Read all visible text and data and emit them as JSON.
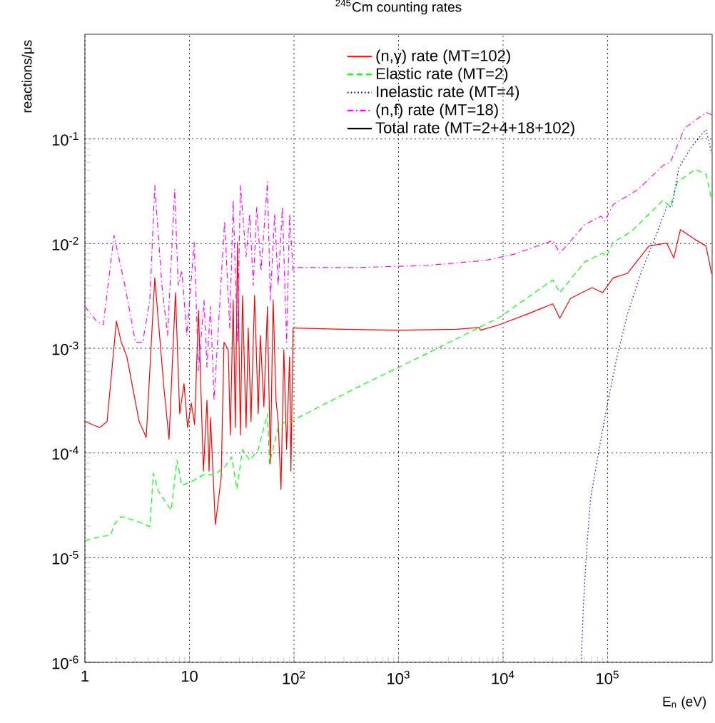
{
  "chart_data": {
    "type": "line",
    "title": "$^{245}$Cm counting rates",
    "xlabel": "E$_{n}$ (eV)",
    "ylabel": "reactions/μs",
    "log": "xy",
    "grid": true,
    "legend": "top right",
    "marker": "none",
    "xlim": [
      1,
      1000000
    ],
    "ylim": [
      1e-06,
      1
    ],
    "xticks": [
      1,
      10,
      {
        "value": 100,
        "label": "10$^{2}$"
      },
      {
        "value": 1000,
        "label": "10$^{3}$"
      },
      {
        "value": 10000,
        "label": "10$^{4}$"
      },
      {
        "value": 100000,
        "label": "10$^{5}$"
      }
    ],
    "yticks": [
      {
        "value": 1e-06,
        "label": "10$^{-6}$"
      },
      {
        "value": 1e-05,
        "label": "10$^{-5}$"
      },
      {
        "value": 0.0001,
        "label": "10$^{-4}$"
      },
      {
        "value": 0.001,
        "label": "10$^{-3}$"
      },
      {
        "value": 0.01,
        "label": "10$^{-2}$"
      },
      {
        "value": 0.1,
        "label": "10$^{-1}$"
      }
    ],
    "series": [
      {
        "name": "(n,γ) rate (MT=102)",
        "color": "#ff0000",
        "line_style": "solid",
        "x": [
          1,
          1.29,
          1.39,
          1.63,
          2.0,
          2.23,
          2.52,
          3.3,
          3.86,
          4.66,
          5.71,
          6.38,
          7.35,
          8.07,
          8.87,
          9.6,
          10.4,
          11.2,
          12.2,
          13.6,
          14.7,
          15.4,
          15.9,
          17.7,
          20.1,
          21.4,
          23.5,
          24.6,
          26.2,
          27.5,
          28.8,
          30.7,
          32.2,
          34.8,
          36.5,
          38.8,
          42,
          45.5,
          47.6,
          51.5,
          55.7,
          59.4,
          63.2,
          67.3,
          70.6,
          75.1,
          80,
          85,
          90.7,
          93.5,
          98,
          100,
          290,
          1020,
          3580,
          5900,
          6100,
          9200,
          17200,
          29900,
          34900,
          44200,
          70800,
          89500,
          113000,
          155000,
          249000,
          368000,
          430000,
          497000,
          690000,
          874000,
          990000
        ],
        "values": [
          0.0002,
          0.00018,
          0.000175,
          0.0002,
          0.00182,
          0.00114,
          0.00083,
          0.0002,
          0.000141,
          0.0047,
          0.00041,
          0.000135,
          0.0034,
          0.000237,
          0.00046,
          0.000175,
          0.0003,
          0.000187,
          0.0023,
          6.7e-05,
          0.00032,
          6.7e-05,
          0.000219,
          2.07e-05,
          5.75e-05,
          0.00114,
          0.00097,
          0.000148,
          0.0029,
          0.000175,
          0.0103,
          0.000148,
          0.0032,
          0.000175,
          0.00156,
          0.0002,
          0.0032,
          0.000237,
          0.00133,
          0.000277,
          0.0025,
          7.9e-05,
          0.0029,
          0.00032,
          0.0002,
          4.5e-05,
          0.00097,
          0.000108,
          0.00083,
          6.7e-05,
          0.00156,
          0.00156,
          0.00152,
          0.00149,
          0.00152,
          0.00158,
          0.00149,
          0.00168,
          0.00213,
          0.00266,
          0.00194,
          0.003,
          0.0038,
          0.0034,
          0.0047,
          0.0052,
          0.0095,
          0.0101,
          0.0073,
          0.0136,
          0.0109,
          0.0095,
          0.0051
        ]
      },
      {
        "name": "Elastic rate (MT=2)",
        "color": "#00ff00",
        "line_style": "dashed",
        "x": [
          1,
          1.39,
          1.76,
          1.9,
          2.23,
          3.05,
          4.18,
          4.52,
          5.05,
          6.69,
          7.6,
          8.47,
          10.4,
          13.6,
          17.2,
          21.7,
          25.4,
          28.4,
          32.2,
          37.7,
          45.5,
          55.7,
          58.3,
          70.6,
          83,
          96,
          100,
          397,
          1910,
          9200,
          29900,
          34900,
          60500,
          89500,
          96900,
          113000,
          168000,
          340000,
          398000,
          466000,
          690000,
          874000,
          990000
        ],
        "values": [
          1.45e-05,
          1.59e-05,
          1.63e-05,
          2.07e-05,
          2.47e-05,
          2.26e-05,
          1.98e-05,
          6.4e-05,
          4.3e-05,
          2.84e-05,
          8.5e-05,
          4.9e-05,
          5.3e-05,
          6.2e-05,
          6.2e-05,
          7.3e-05,
          9.2e-05,
          4.5e-05,
          0.000108,
          8.5e-05,
          0.000108,
          0.000237,
          7.9e-05,
          0.000175,
          0.0002,
          0.0002,
          0.000208,
          0.00042,
          0.0009,
          0.00197,
          0.0045,
          0.0034,
          0.0067,
          0.0081,
          0.0075,
          0.0103,
          0.013,
          0.026,
          0.0225,
          0.039,
          0.051,
          0.046,
          0.026
        ]
      },
      {
        "name": "Inelastic rate (MT=4)",
        "color": "#0000ff",
        "line_style": "dotted",
        "x": [
          56000,
          58600,
          62400,
          68500,
          82800,
          100000,
          123000,
          155000,
          212000,
          291000,
          368000,
          411000,
          481000,
          638000,
          874000,
          990000
        ],
        "values": [
          1e-06,
          3.4e-06,
          1.02e-05,
          3.6e-05,
          0.000108,
          0.0003,
          0.00083,
          0.00213,
          0.0055,
          0.012,
          0.0225,
          0.0225,
          0.053,
          0.085,
          0.123,
          0.073
        ]
      },
      {
        "name": "(n,f) rate (MT=18)",
        "color": "#ff00ff",
        "line_style": "dashdot",
        "x": [
          1,
          1.29,
          1.5,
          1.9,
          2.41,
          3.05,
          3.57,
          4.18,
          4.66,
          5.45,
          6.18,
          7.23,
          7.8,
          8.47,
          9.45,
          11.1,
          12.2,
          13.8,
          14.7,
          15.9,
          17.2,
          21.7,
          24.3,
          26.2,
          28.8,
          30.7,
          34.8,
          37.7,
          40.8,
          44,
          48.4,
          55.7,
          59.4,
          65.3,
          70.6,
          77.5,
          85,
          90.7,
          98,
          100,
          397,
          1910,
          6710,
          12600,
          29900,
          34900,
          60500,
          86900,
          94000,
          113000,
          196000,
          340000,
          398000,
          546000,
          874000,
          990000
        ],
        "values": [
          0.0025,
          0.00182,
          0.00168,
          0.012,
          0.004,
          0.00114,
          0.00114,
          0.0029,
          0.036,
          0.004,
          0.00133,
          0.033,
          0.004,
          0.0055,
          0.00133,
          0.0103,
          0.00061,
          0.0029,
          0.00066,
          0.0025,
          0.00032,
          0.0164,
          0.00156,
          0.026,
          0.00114,
          0.036,
          0.0075,
          0.0192,
          0.004,
          0.0225,
          0.0055,
          0.039,
          0.0029,
          0.0192,
          0.004,
          0.0225,
          0.00114,
          0.0192,
          0.0055,
          0.0059,
          0.0059,
          0.0062,
          0.0069,
          0.0079,
          0.0107,
          0.0081,
          0.0152,
          0.0183,
          0.0164,
          0.0236,
          0.033,
          0.056,
          0.0596,
          0.127,
          0.179,
          0.17
        ]
      },
      {
        "name": "Total rate (MT=2+4+18+102)",
        "color": "#000000",
        "line_style": "solid"
      }
    ]
  }
}
